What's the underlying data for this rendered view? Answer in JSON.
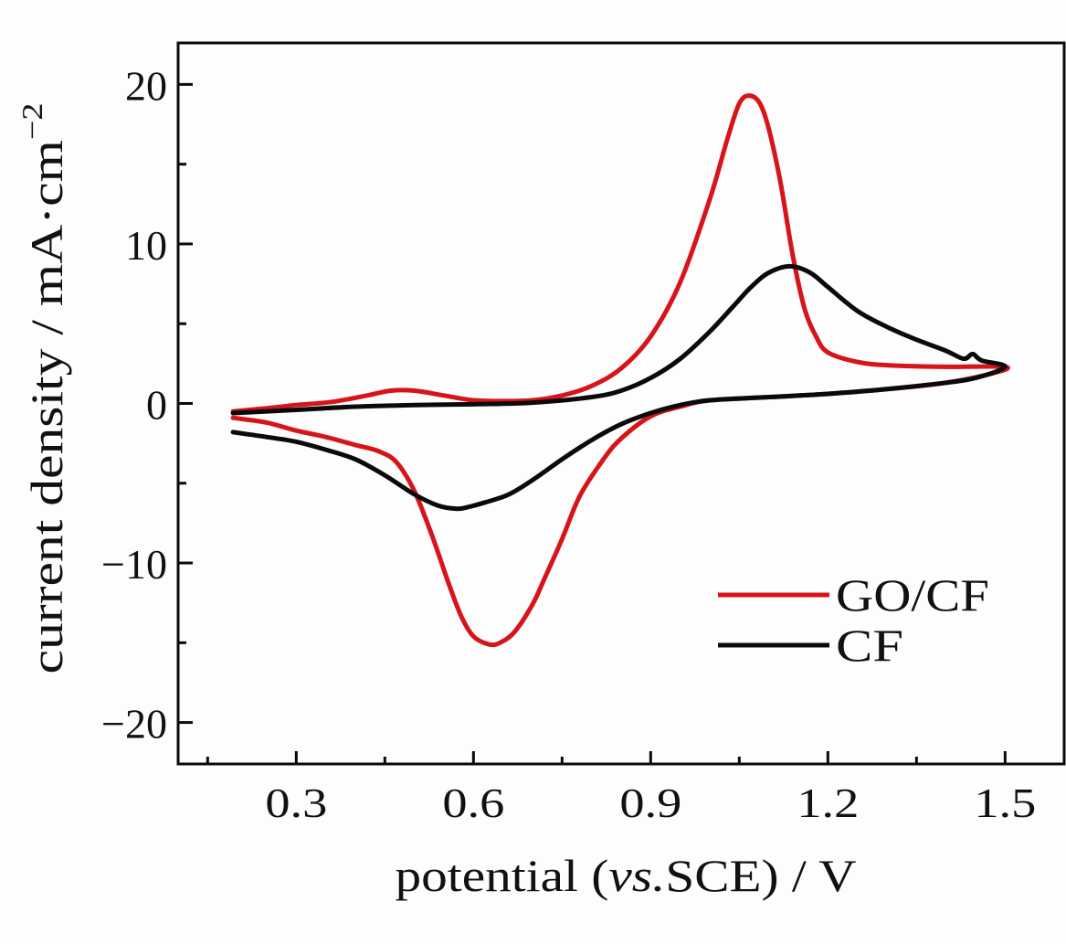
{
  "chart_data": {
    "type": "line",
    "title": "",
    "xlabel": "potential (vs.SCE) / V",
    "xlabel_parts": {
      "prefix": "potential (",
      "italic": "vs.",
      "suffix": "SCE) / V"
    },
    "ylabel": "current density / mA·cm⁻²",
    "ylabel_parts": {
      "main": "current density / mA·cm",
      "sup": "−2"
    },
    "xlim": [
      0.1,
      1.6
    ],
    "ylim": [
      -22.6,
      22.6
    ],
    "x_ticks": [
      0.3,
      0.6,
      0.9,
      1.2,
      1.5
    ],
    "x_tick_labels": [
      "0.3",
      "0.6",
      "0.9",
      "1.2",
      "1.5"
    ],
    "x_minor_ticks": [
      0.15,
      0.45,
      0.75,
      1.05,
      1.35
    ],
    "y_ticks": [
      20,
      10,
      0,
      -10,
      -20
    ],
    "y_tick_labels": [
      "20",
      "10",
      "0",
      "−10",
      "−20"
    ],
    "y_minor_ticks": [
      15,
      5,
      -5,
      -15
    ],
    "grid": false,
    "legend_position": "bottom-right",
    "series": [
      {
        "name": "GO/CF",
        "color": "#d7141a",
        "points": [
          [
            0.193,
            -0.5
          ],
          [
            0.25,
            -0.3
          ],
          [
            0.3,
            -0.1
          ],
          [
            0.36,
            0.1
          ],
          [
            0.42,
            0.5
          ],
          [
            0.46,
            0.8
          ],
          [
            0.5,
            0.8
          ],
          [
            0.55,
            0.5
          ],
          [
            0.6,
            0.2
          ],
          [
            0.65,
            0.15
          ],
          [
            0.7,
            0.2
          ],
          [
            0.75,
            0.5
          ],
          [
            0.8,
            1.1
          ],
          [
            0.85,
            2.2
          ],
          [
            0.9,
            4.2
          ],
          [
            0.95,
            7.6
          ],
          [
            1.0,
            12.8
          ],
          [
            1.03,
            16.6
          ],
          [
            1.05,
            18.8
          ],
          [
            1.067,
            19.3
          ],
          [
            1.085,
            18.8
          ],
          [
            1.1,
            17.2
          ],
          [
            1.12,
            13.8
          ],
          [
            1.14,
            9.4
          ],
          [
            1.16,
            6.0
          ],
          [
            1.18,
            4.2
          ],
          [
            1.2,
            3.2
          ],
          [
            1.25,
            2.6
          ],
          [
            1.3,
            2.4
          ],
          [
            1.4,
            2.3
          ],
          [
            1.5,
            2.3
          ],
          [
            1.48,
            1.9
          ],
          [
            1.4,
            1.3
          ],
          [
            1.3,
            0.9
          ],
          [
            1.2,
            0.6
          ],
          [
            1.1,
            0.4
          ],
          [
            1.0,
            0.2
          ],
          [
            0.95,
            -0.2
          ],
          [
            0.9,
            -0.8
          ],
          [
            0.85,
            -2.2
          ],
          [
            0.82,
            -3.5
          ],
          [
            0.78,
            -5.8
          ],
          [
            0.75,
            -8.5
          ],
          [
            0.72,
            -11.0
          ],
          [
            0.7,
            -12.6
          ],
          [
            0.67,
            -14.3
          ],
          [
            0.645,
            -15.0
          ],
          [
            0.626,
            -15.1
          ],
          [
            0.6,
            -14.6
          ],
          [
            0.58,
            -13.4
          ],
          [
            0.56,
            -11.5
          ],
          [
            0.53,
            -8.3
          ],
          [
            0.5,
            -5.5
          ],
          [
            0.47,
            -3.7
          ],
          [
            0.44,
            -3.0
          ],
          [
            0.4,
            -2.6
          ],
          [
            0.35,
            -2.1
          ],
          [
            0.3,
            -1.7
          ],
          [
            0.25,
            -1.2
          ],
          [
            0.193,
            -0.9
          ]
        ]
      },
      {
        "name": "CF",
        "color": "#0a0a0a",
        "points": [
          [
            0.193,
            -0.6
          ],
          [
            0.3,
            -0.4
          ],
          [
            0.4,
            -0.2
          ],
          [
            0.5,
            -0.1
          ],
          [
            0.6,
            -0.05
          ],
          [
            0.7,
            0.05
          ],
          [
            0.8,
            0.4
          ],
          [
            0.85,
            0.8
          ],
          [
            0.9,
            1.6
          ],
          [
            0.95,
            2.8
          ],
          [
            1.0,
            4.5
          ],
          [
            1.04,
            6.1
          ],
          [
            1.07,
            7.3
          ],
          [
            1.1,
            8.2
          ],
          [
            1.136,
            8.6
          ],
          [
            1.17,
            8.2
          ],
          [
            1.2,
            7.3
          ],
          [
            1.25,
            5.8
          ],
          [
            1.3,
            4.8
          ],
          [
            1.35,
            4.0
          ],
          [
            1.4,
            3.3
          ],
          [
            1.43,
            2.8
          ],
          [
            1.445,
            3.1
          ],
          [
            1.46,
            2.7
          ],
          [
            1.5,
            2.3
          ],
          [
            1.45,
            1.6
          ],
          [
            1.4,
            1.3
          ],
          [
            1.3,
            0.9
          ],
          [
            1.2,
            0.6
          ],
          [
            1.1,
            0.4
          ],
          [
            1.0,
            0.2
          ],
          [
            0.95,
            -0.1
          ],
          [
            0.9,
            -0.6
          ],
          [
            0.85,
            -1.3
          ],
          [
            0.8,
            -2.3
          ],
          [
            0.75,
            -3.5
          ],
          [
            0.7,
            -4.8
          ],
          [
            0.66,
            -5.7
          ],
          [
            0.62,
            -6.2
          ],
          [
            0.59,
            -6.5
          ],
          [
            0.572,
            -6.6
          ],
          [
            0.54,
            -6.4
          ],
          [
            0.5,
            -5.7
          ],
          [
            0.45,
            -4.5
          ],
          [
            0.4,
            -3.5
          ],
          [
            0.35,
            -2.9
          ],
          [
            0.3,
            -2.4
          ],
          [
            0.25,
            -2.1
          ],
          [
            0.193,
            -1.8
          ]
        ]
      }
    ]
  }
}
